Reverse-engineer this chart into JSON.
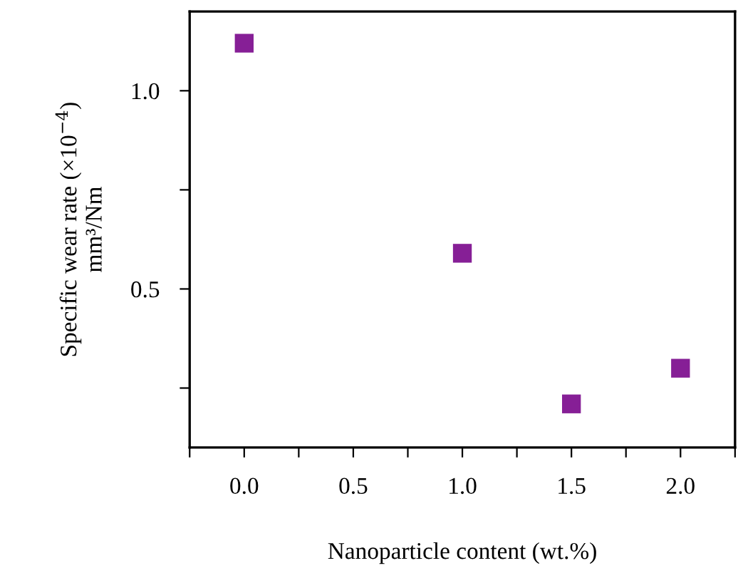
{
  "chart_data": {
    "type": "scatter",
    "xlabel": "Nanoparticle content (wt.%)",
    "ylabel": "Specific wear rate (×10$^{−4}$)\nmm³/Nm",
    "x": [
      0.0,
      1.0,
      1.5,
      2.0
    ],
    "series": [
      {
        "color": "#861f96",
        "values": [
          1.12,
          0.59,
          0.21,
          0.3
        ]
      }
    ],
    "marker": "square",
    "grid": false,
    "legend": false,
    "xlim": [
      -0.25,
      2.25
    ],
    "xticks": [
      {
        "value": -0.25,
        "label": null
      },
      {
        "value": 0,
        "label": "0.0"
      },
      {
        "value": 0.25,
        "label": null
      },
      {
        "value": 0.5,
        "label": "0.5"
      },
      {
        "value": 0.75,
        "label": null
      },
      {
        "value": 1,
        "label": "1.0"
      },
      {
        "value": 1.25,
        "label": null
      },
      {
        "value": 1.5,
        "label": "1.5"
      },
      {
        "value": 1.75,
        "label": null
      },
      {
        "value": 2,
        "label": "2.0"
      },
      {
        "value": 2.25,
        "label": null
      }
    ],
    "ylim": [
      0.1,
      1.2
    ],
    "yticks": [
      {
        "value": 0.25,
        "label": null
      },
      {
        "value": 0.5,
        "label": "0.5"
      },
      {
        "value": 0.75,
        "label": null
      },
      {
        "value": 1,
        "label": "1.0"
      }
    ]
  }
}
